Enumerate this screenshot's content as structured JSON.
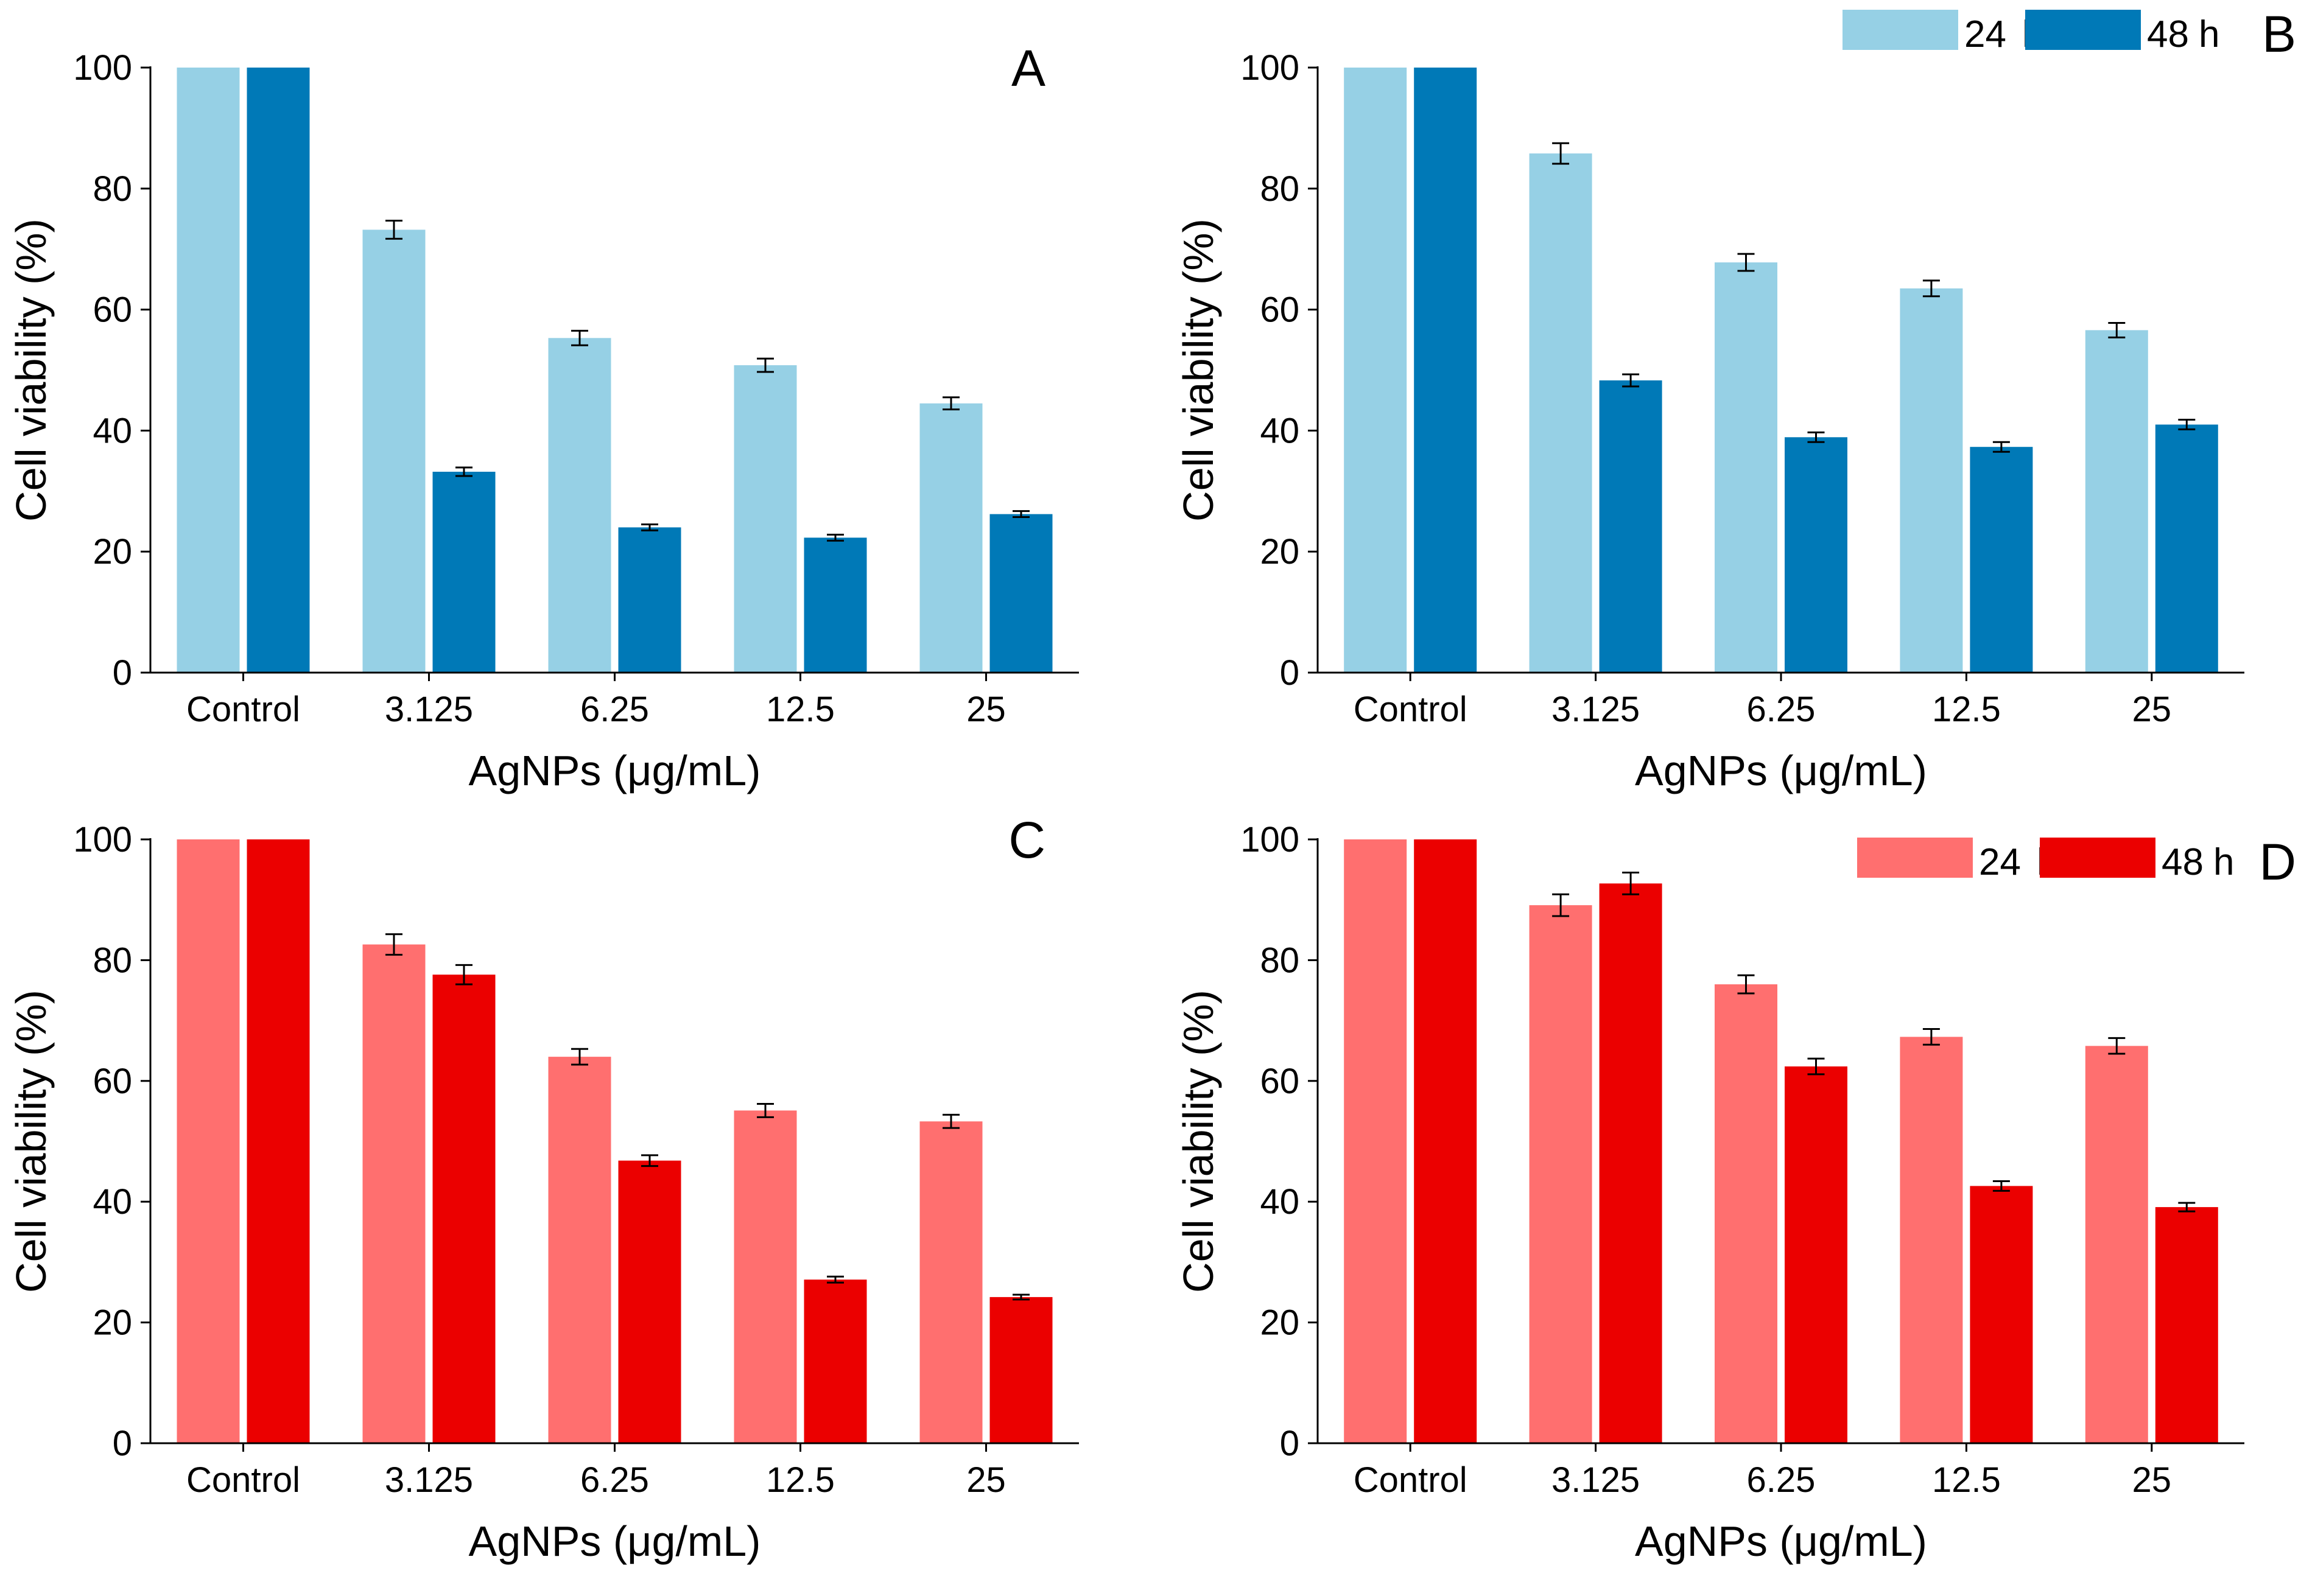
{
  "figure": {
    "type": "bar-grid"
  },
  "legend_unit": "h",
  "chart_data": [
    {
      "type": "bar",
      "panel": "A",
      "categories": [
        "Control",
        "3.125",
        "6.25",
        "12.5",
        "25"
      ],
      "series": [
        {
          "name": "24",
          "color": "#96d0e5",
          "values": [
            100,
            73.2,
            55.3,
            50.8,
            44.5
          ],
          "errors": [
            0,
            1.5,
            1.2,
            1.1,
            1.0
          ]
        },
        {
          "name": "48",
          "color": "#0079b7",
          "values": [
            100,
            33.2,
            24.0,
            22.3,
            26.2
          ],
          "errors": [
            0,
            0.7,
            0.5,
            0.5,
            0.5
          ]
        }
      ],
      "xlabel": "AgNPs (μg/mL)",
      "ylabel": "Cell viability (%)",
      "ylim": [
        0,
        100
      ],
      "yticks": [
        "0",
        "20",
        "40",
        "60",
        "80",
        "100"
      ],
      "legend": false
    },
    {
      "type": "bar",
      "panel": "B",
      "categories": [
        "Control",
        "3.125",
        "6.25",
        "12.5",
        "25"
      ],
      "series": [
        {
          "name": "24",
          "color": "#96d0e5",
          "values": [
            100,
            85.8,
            67.8,
            63.5,
            56.6
          ],
          "errors": [
            0,
            1.7,
            1.4,
            1.3,
            1.2
          ]
        },
        {
          "name": "48",
          "color": "#0079b7",
          "values": [
            100,
            48.3,
            38.9,
            37.3,
            41.0
          ],
          "errors": [
            0,
            1.0,
            0.8,
            0.8,
            0.8
          ]
        }
      ],
      "xlabel": "AgNPs (μg/mL)",
      "ylabel": "Cell viability (%)",
      "ylim": [
        0,
        100
      ],
      "yticks": [
        "0",
        "20",
        "40",
        "60",
        "80",
        "100"
      ],
      "legend": true,
      "legend_position": "top-right"
    },
    {
      "type": "bar",
      "panel": "C",
      "categories": [
        "Control",
        "3.125",
        "6.25",
        "12.5",
        "25"
      ],
      "series": [
        {
          "name": "24",
          "color": "#ff6f6f",
          "values": [
            100,
            82.6,
            64.0,
            55.1,
            53.3
          ],
          "errors": [
            0,
            1.7,
            1.3,
            1.1,
            1.1
          ]
        },
        {
          "name": "48",
          "color": "#eb0000",
          "values": [
            100,
            77.6,
            46.8,
            27.1,
            24.2
          ],
          "errors": [
            0,
            1.6,
            0.9,
            0.5,
            0.4
          ]
        }
      ],
      "xlabel": "AgNPs (μg/mL)",
      "ylabel": "Cell viability (%)",
      "ylim": [
        0,
        100
      ],
      "yticks": [
        "0",
        "20",
        "40",
        "60",
        "80",
        "100"
      ],
      "legend": false
    },
    {
      "type": "bar",
      "panel": "D",
      "categories": [
        "Control",
        "3.125",
        "6.25",
        "12.5",
        "25"
      ],
      "series": [
        {
          "name": "24",
          "color": "#ff6f6f",
          "values": [
            100,
            89.1,
            76.0,
            67.3,
            65.8
          ],
          "errors": [
            0,
            1.8,
            1.5,
            1.3,
            1.3
          ]
        },
        {
          "name": "48",
          "color": "#eb0000",
          "values": [
            100,
            92.7,
            62.4,
            42.6,
            39.1
          ],
          "errors": [
            0,
            1.8,
            1.3,
            0.8,
            0.7
          ]
        }
      ],
      "xlabel": "AgNPs (μg/mL)",
      "ylabel": "Cell viability (%)",
      "ylim": [
        0,
        100
      ],
      "yticks": [
        "0",
        "20",
        "40",
        "60",
        "80",
        "100"
      ],
      "legend": true,
      "legend_position": "top-right"
    }
  ]
}
